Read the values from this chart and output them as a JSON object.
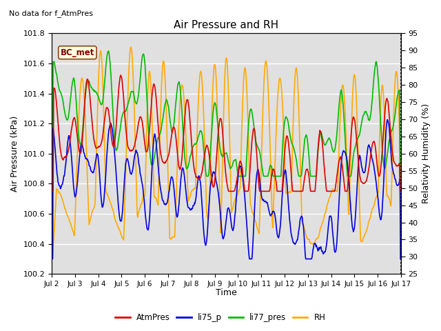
{
  "title": "Air Pressure and RH",
  "top_left_text": "No data for f_AtmPres",
  "box_label": "BC_met",
  "xlabel": "Time",
  "ylabel_left": "Air Pressure (kPa)",
  "ylabel_right": "Relativity Humidity (%)",
  "ylim_left": [
    100.2,
    101.8
  ],
  "ylim_right": [
    25,
    95
  ],
  "yticks_left": [
    100.2,
    100.4,
    100.6,
    100.8,
    101.0,
    101.2,
    101.4,
    101.6,
    101.8
  ],
  "yticks_right": [
    25,
    30,
    35,
    40,
    45,
    50,
    55,
    60,
    65,
    70,
    75,
    80,
    85,
    90,
    95
  ],
  "xtick_labels": [
    "Jul 2",
    "Jul 3",
    "Jul 4",
    "Jul 5",
    "Jul 6",
    "Jul 7",
    "Jul 8",
    "Jul 9",
    "Jul 10",
    "Jul 11",
    "Jul 12",
    "Jul 13",
    "Jul 14",
    "Jul 15",
    "Jul 16",
    "Jul 17"
  ],
  "colors": {
    "AtmPres": "#dd0000",
    "li75_p": "#0000dd",
    "li77_pres": "#00bb00",
    "RH": "#ffaa00"
  },
  "bg_color": "#e0e0e0",
  "legend_labels": [
    "AtmPres",
    "li75_p",
    "li77_pres",
    "RH"
  ],
  "linewidth": 1.2
}
